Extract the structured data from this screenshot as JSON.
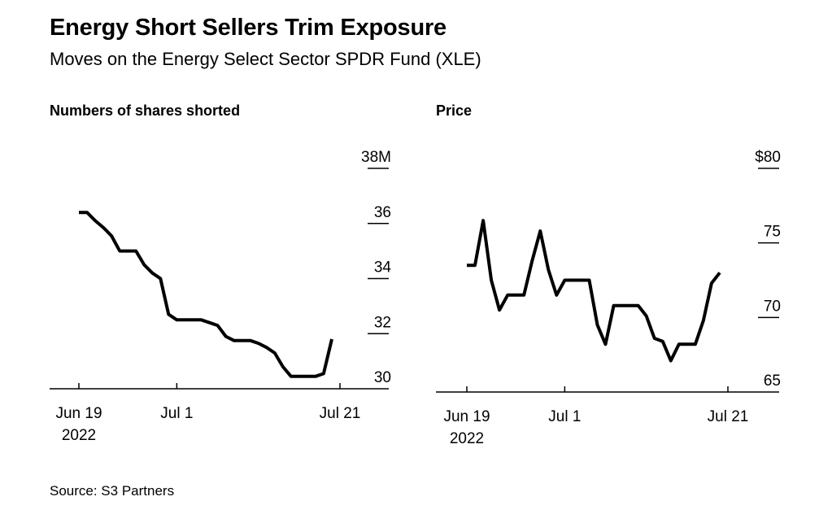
{
  "title": "Energy Short Sellers Trim Exposure",
  "subtitle": "Moves on the Energy Select Sector SPDR Fund (XLE)",
  "source": "Source: S3 Partners",
  "chart_data": [
    {
      "type": "line",
      "title": "Numbers of shares shorted",
      "xlabel": "",
      "ylabel": "",
      "ylim": [
        30,
        38
      ],
      "y_ticks": [
        {
          "value": 38,
          "label": "38M"
        },
        {
          "value": 36,
          "label": "36"
        },
        {
          "value": 34,
          "label": "34"
        },
        {
          "value": 32,
          "label": "32"
        },
        {
          "value": 30,
          "label": "30"
        }
      ],
      "xlim": [
        "2022-06-19",
        "2022-07-21"
      ],
      "x_ticks": [
        {
          "value": "2022-06-19",
          "label": "Jun 19",
          "label2": "2022"
        },
        {
          "value": "2022-07-01",
          "label": "Jul 1",
          "label2": ""
        },
        {
          "value": "2022-07-21",
          "label": "Jul 21",
          "label2": ""
        }
      ],
      "grid": true,
      "series": [
        {
          "x": [
            "2022-06-19",
            "2022-06-20",
            "2022-06-21",
            "2022-06-22",
            "2022-06-23",
            "2022-06-24",
            "2022-06-25",
            "2022-06-26",
            "2022-06-27",
            "2022-06-28",
            "2022-06-29",
            "2022-06-30",
            "2022-07-01",
            "2022-07-02",
            "2022-07-03",
            "2022-07-04",
            "2022-07-05",
            "2022-07-06",
            "2022-07-07",
            "2022-07-08",
            "2022-07-09",
            "2022-07-10",
            "2022-07-11",
            "2022-07-12",
            "2022-07-13",
            "2022-07-14",
            "2022-07-15",
            "2022-07-16",
            "2022-07-17",
            "2022-07-18",
            "2022-07-19",
            "2022-07-20"
          ],
          "values": [
            36.4,
            36.4,
            36.1,
            35.85,
            35.55,
            35.0,
            35.0,
            35.0,
            34.5,
            34.2,
            34.0,
            32.7,
            32.5,
            32.5,
            32.5,
            32.5,
            32.4,
            32.3,
            31.9,
            31.75,
            31.75,
            31.75,
            31.65,
            31.5,
            31.3,
            30.8,
            30.45,
            30.45,
            30.45,
            30.45,
            30.55,
            31.8
          ]
        }
      ]
    },
    {
      "type": "line",
      "title": "Price",
      "xlabel": "",
      "ylabel": "",
      "ylim": [
        65,
        80
      ],
      "y_ticks": [
        {
          "value": 80,
          "label": "$80"
        },
        {
          "value": 75,
          "label": "75"
        },
        {
          "value": 70,
          "label": "70"
        },
        {
          "value": 65,
          "label": "65"
        }
      ],
      "xlim": [
        "2022-06-19",
        "2022-07-21"
      ],
      "x_ticks": [
        {
          "value": "2022-06-19",
          "label": "Jun 19",
          "label2": "2022"
        },
        {
          "value": "2022-07-01",
          "label": "Jul 1",
          "label2": ""
        },
        {
          "value": "2022-07-21",
          "label": "Jul 21",
          "label2": ""
        }
      ],
      "grid": true,
      "series": [
        {
          "x": [
            "2022-06-19",
            "2022-06-20",
            "2022-06-21",
            "2022-06-22",
            "2022-06-23",
            "2022-06-24",
            "2022-06-25",
            "2022-06-26",
            "2022-06-27",
            "2022-06-28",
            "2022-06-29",
            "2022-06-30",
            "2022-07-01",
            "2022-07-02",
            "2022-07-03",
            "2022-07-04",
            "2022-07-05",
            "2022-07-06",
            "2022-07-07",
            "2022-07-08",
            "2022-07-09",
            "2022-07-10",
            "2022-07-11",
            "2022-07-12",
            "2022-07-13",
            "2022-07-14",
            "2022-07-15",
            "2022-07-16",
            "2022-07-17",
            "2022-07-18",
            "2022-07-19",
            "2022-07-20"
          ],
          "values": [
            73.5,
            73.5,
            76.5,
            72.5,
            70.5,
            71.5,
            71.5,
            71.5,
            73.8,
            75.8,
            73.2,
            71.5,
            72.5,
            72.5,
            72.5,
            72.5,
            69.5,
            68.2,
            70.8,
            70.8,
            70.8,
            70.8,
            70.1,
            68.6,
            68.4,
            67.1,
            68.2,
            68.2,
            68.2,
            69.8,
            72.3,
            73.0
          ]
        }
      ]
    }
  ]
}
